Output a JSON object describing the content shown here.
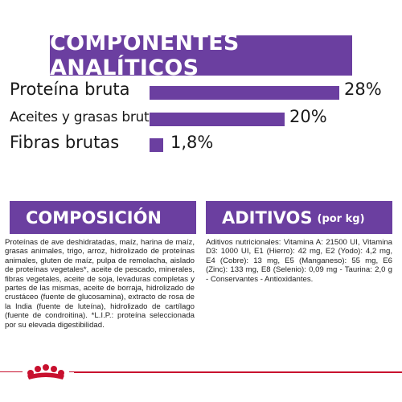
{
  "title": "COMPONENTES ANALÍTICOS",
  "analytics": [
    {
      "label": "Proteína bruta",
      "value": "28%",
      "fraction": 0.28
    },
    {
      "label": "Aceites y grasas brutos",
      "value": "20%",
      "fraction": 0.2
    },
    {
      "label": "Fibras brutas",
      "value": "1,8%",
      "fraction": 0.018
    }
  ],
  "composition": {
    "heading": "COMPOSICIÓN",
    "text": "Proteínas de ave deshidratadas, maíz, harina de maíz, grasas animales, trigo, arroz, hidrolizado de proteínas animales, gluten de maíz, pulpa de remolacha, aislado de proteínas vegetales*, aceite de pescado, minerales, fibras vegetales, aceite de soja, levaduras completas y partes de las mismas, aceite de borraja, hidrolizado de crustáceo (fuente de glucosamina), extracto de rosa de la India (fuente de luteína), hidrolizado de cartílago (fuente de condroitina). *L.I.P.: proteína seleccionada por su elevada digestibilidad."
  },
  "additives": {
    "heading": "ADITIVOS",
    "heading_sub": "(por kg)",
    "text": "Aditivos nutricionales: Vitamina A: 21500 UI, Vitamina D3: 1000 UI, E1 (Hierro): 42 mg, E2 (Yodo): 4,2 mg, E4 (Cobre): 13 mg, E5 (Manganeso): 55 mg, E6 (Zinc): 133 mg, E8 (Selenio): 0,09 mg - Taurina: 2,0 g - Conservantes - Antioxidantes."
  },
  "colors": {
    "accent": "#6b3fa0",
    "brand_red": "#c8102e"
  },
  "logo_icon": "royal-canin-crown-icon"
}
